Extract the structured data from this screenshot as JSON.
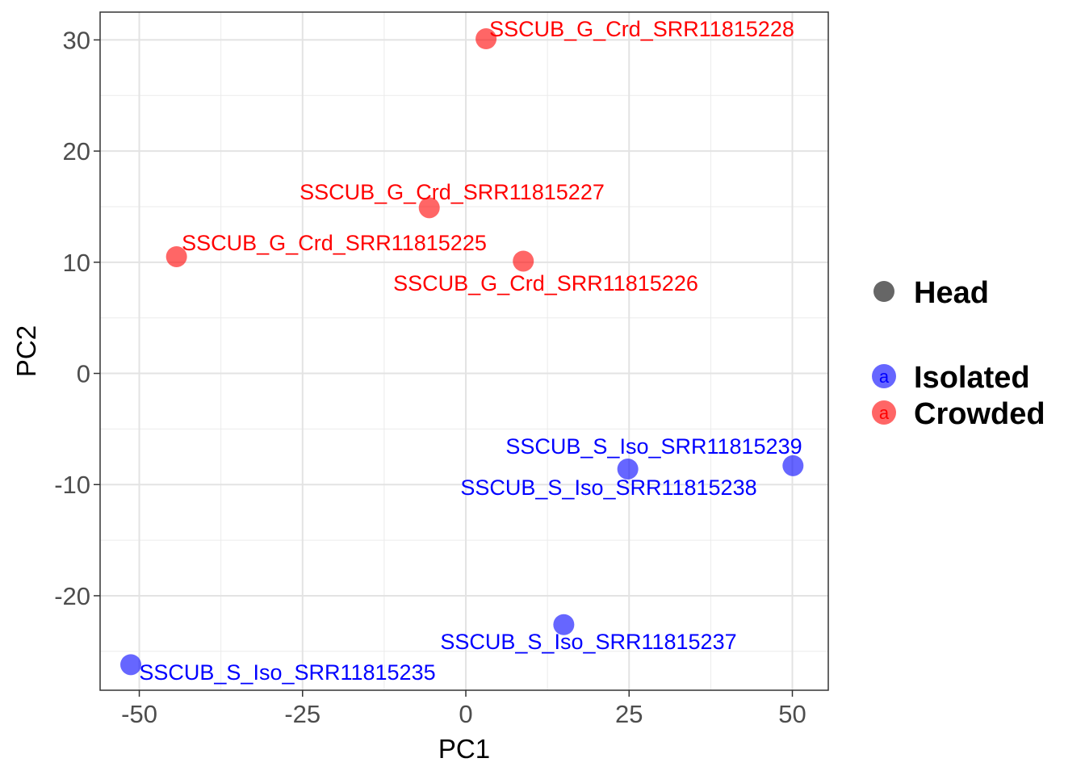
{
  "chart_data": {
    "type": "scatter",
    "xlabel": "PC1",
    "ylabel": "PC2",
    "xlim": [
      -56,
      55.5
    ],
    "ylim": [
      -28.5,
      32.5
    ],
    "x_ticks": [
      -50,
      -25,
      0,
      25,
      50
    ],
    "x_tick_labels": [
      "-50",
      "-25",
      "0",
      "25",
      "50"
    ],
    "y_ticks": [
      -20,
      -10,
      0,
      10,
      20,
      30
    ],
    "y_tick_labels": [
      "-20",
      "-10",
      "0",
      "10",
      "20",
      "30"
    ],
    "grid": true,
    "legend_position": "right",
    "legend": {
      "shape_entries": [
        {
          "label": "Head",
          "color": "#666666"
        }
      ],
      "color_entries": [
        {
          "label": "Isolated",
          "color": "#0000ff",
          "key_glyph": "a"
        },
        {
          "label": "Crowded",
          "color": "#ff0000",
          "key_glyph": "a"
        }
      ]
    },
    "series": [
      {
        "name": "Isolated",
        "color": "#0000ff",
        "points": [
          {
            "x": 50.1,
            "y": -8.3,
            "label": "SSCUB_S_Iso_SRR11815239"
          },
          {
            "x": 24.8,
            "y": -8.6,
            "label": "SSCUB_S_Iso_SRR11815238"
          },
          {
            "x": 15.0,
            "y": -22.6,
            "label": "SSCUB_S_Iso_SRR11815237"
          },
          {
            "x": -51.3,
            "y": -26.2,
            "label": "SSCUB_S_Iso_SRR11815235"
          }
        ]
      },
      {
        "name": "Crowded",
        "color": "#ff0000",
        "points": [
          {
            "x": 3.1,
            "y": 30.1,
            "label": "SSCUB_G_Crd_SRR11815228"
          },
          {
            "x": -5.6,
            "y": 14.9,
            "label": "SSCUB_G_Crd_SRR11815227"
          },
          {
            "x": -44.3,
            "y": 10.5,
            "label": "SSCUB_G_Crd_SRR11815225"
          },
          {
            "x": 8.8,
            "y": 10.1,
            "label": "SSCUB_G_Crd_SRR11815226"
          }
        ]
      }
    ]
  }
}
